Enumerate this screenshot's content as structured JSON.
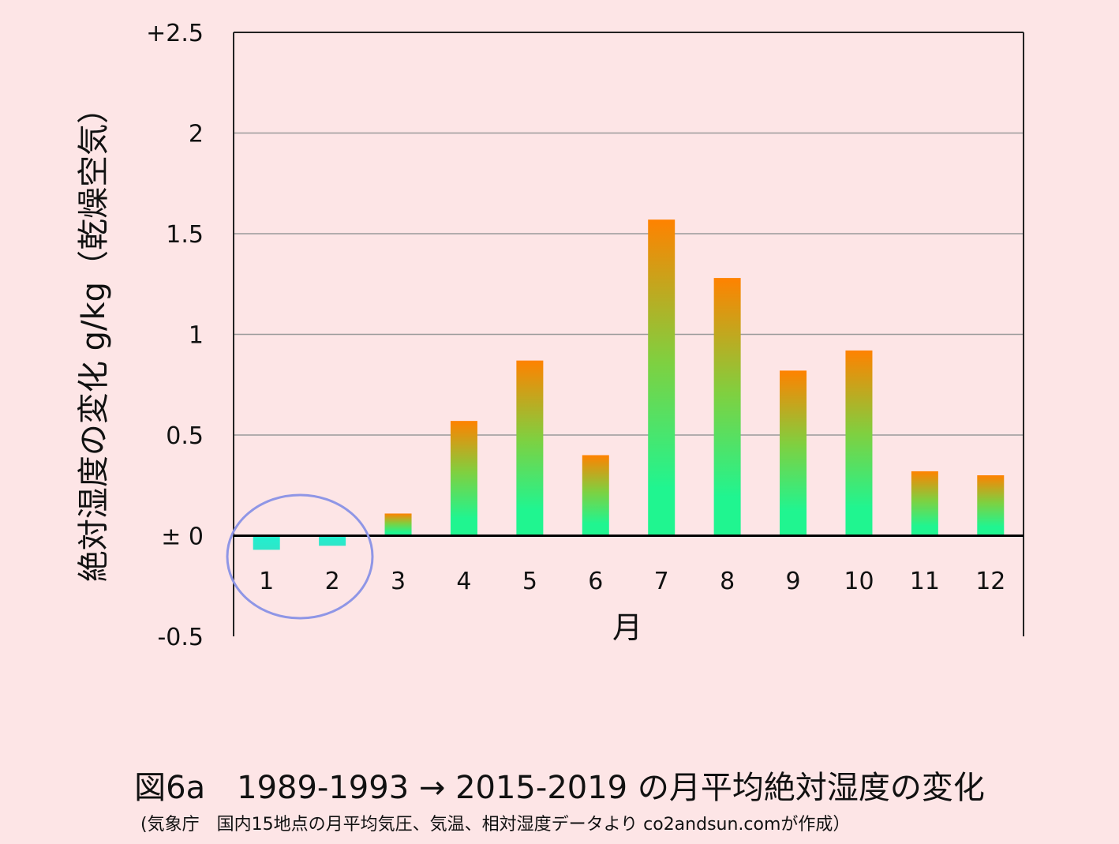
{
  "figure": {
    "title": "図6a　1989-1993 → 2015-2019 の月平均絶対湿度の変化",
    "source": "(気象庁　国内15地点の月平均気圧、気温、相対湿度データより co2andsun.comが作成）"
  },
  "chart_data": {
    "type": "bar",
    "categories": [
      "1",
      "2",
      "3",
      "4",
      "5",
      "6",
      "7",
      "8",
      "9",
      "10",
      "11",
      "12"
    ],
    "series": [
      {
        "values": [
          -0.07,
          -0.05,
          0.11,
          0.57,
          0.87,
          0.4,
          1.57,
          1.28,
          0.82,
          0.92,
          0.32,
          0.3
        ]
      }
    ],
    "xlabel": "月",
    "ylabel": "絶対湿度の変化 g/kg（乾燥空気）",
    "ylim": [
      -0.5,
      2.5
    ],
    "yticks": [
      {
        "value": 2.5,
        "label": "+2.5"
      },
      {
        "value": 2,
        "label": "2"
      },
      {
        "value": 1.5,
        "label": "1.5"
      },
      {
        "value": 1,
        "label": "1"
      },
      {
        "value": 0.5,
        "label": "0.5"
      },
      {
        "value": 0,
        "label": "± 0"
      },
      {
        "value": -0.5,
        "label": "-0.5"
      }
    ],
    "grid": true,
    "annotation": {
      "type": "ellipse",
      "highlights": [
        "1",
        "2"
      ],
      "color": "#8f96e6"
    },
    "colors": {
      "bar_top": "#ff8200",
      "bar_mid": "#7fd040",
      "bar_base": "#20f590",
      "bar_negative": "#20f0d0",
      "grid": "#9a9a9a",
      "axis": "#000000"
    }
  }
}
